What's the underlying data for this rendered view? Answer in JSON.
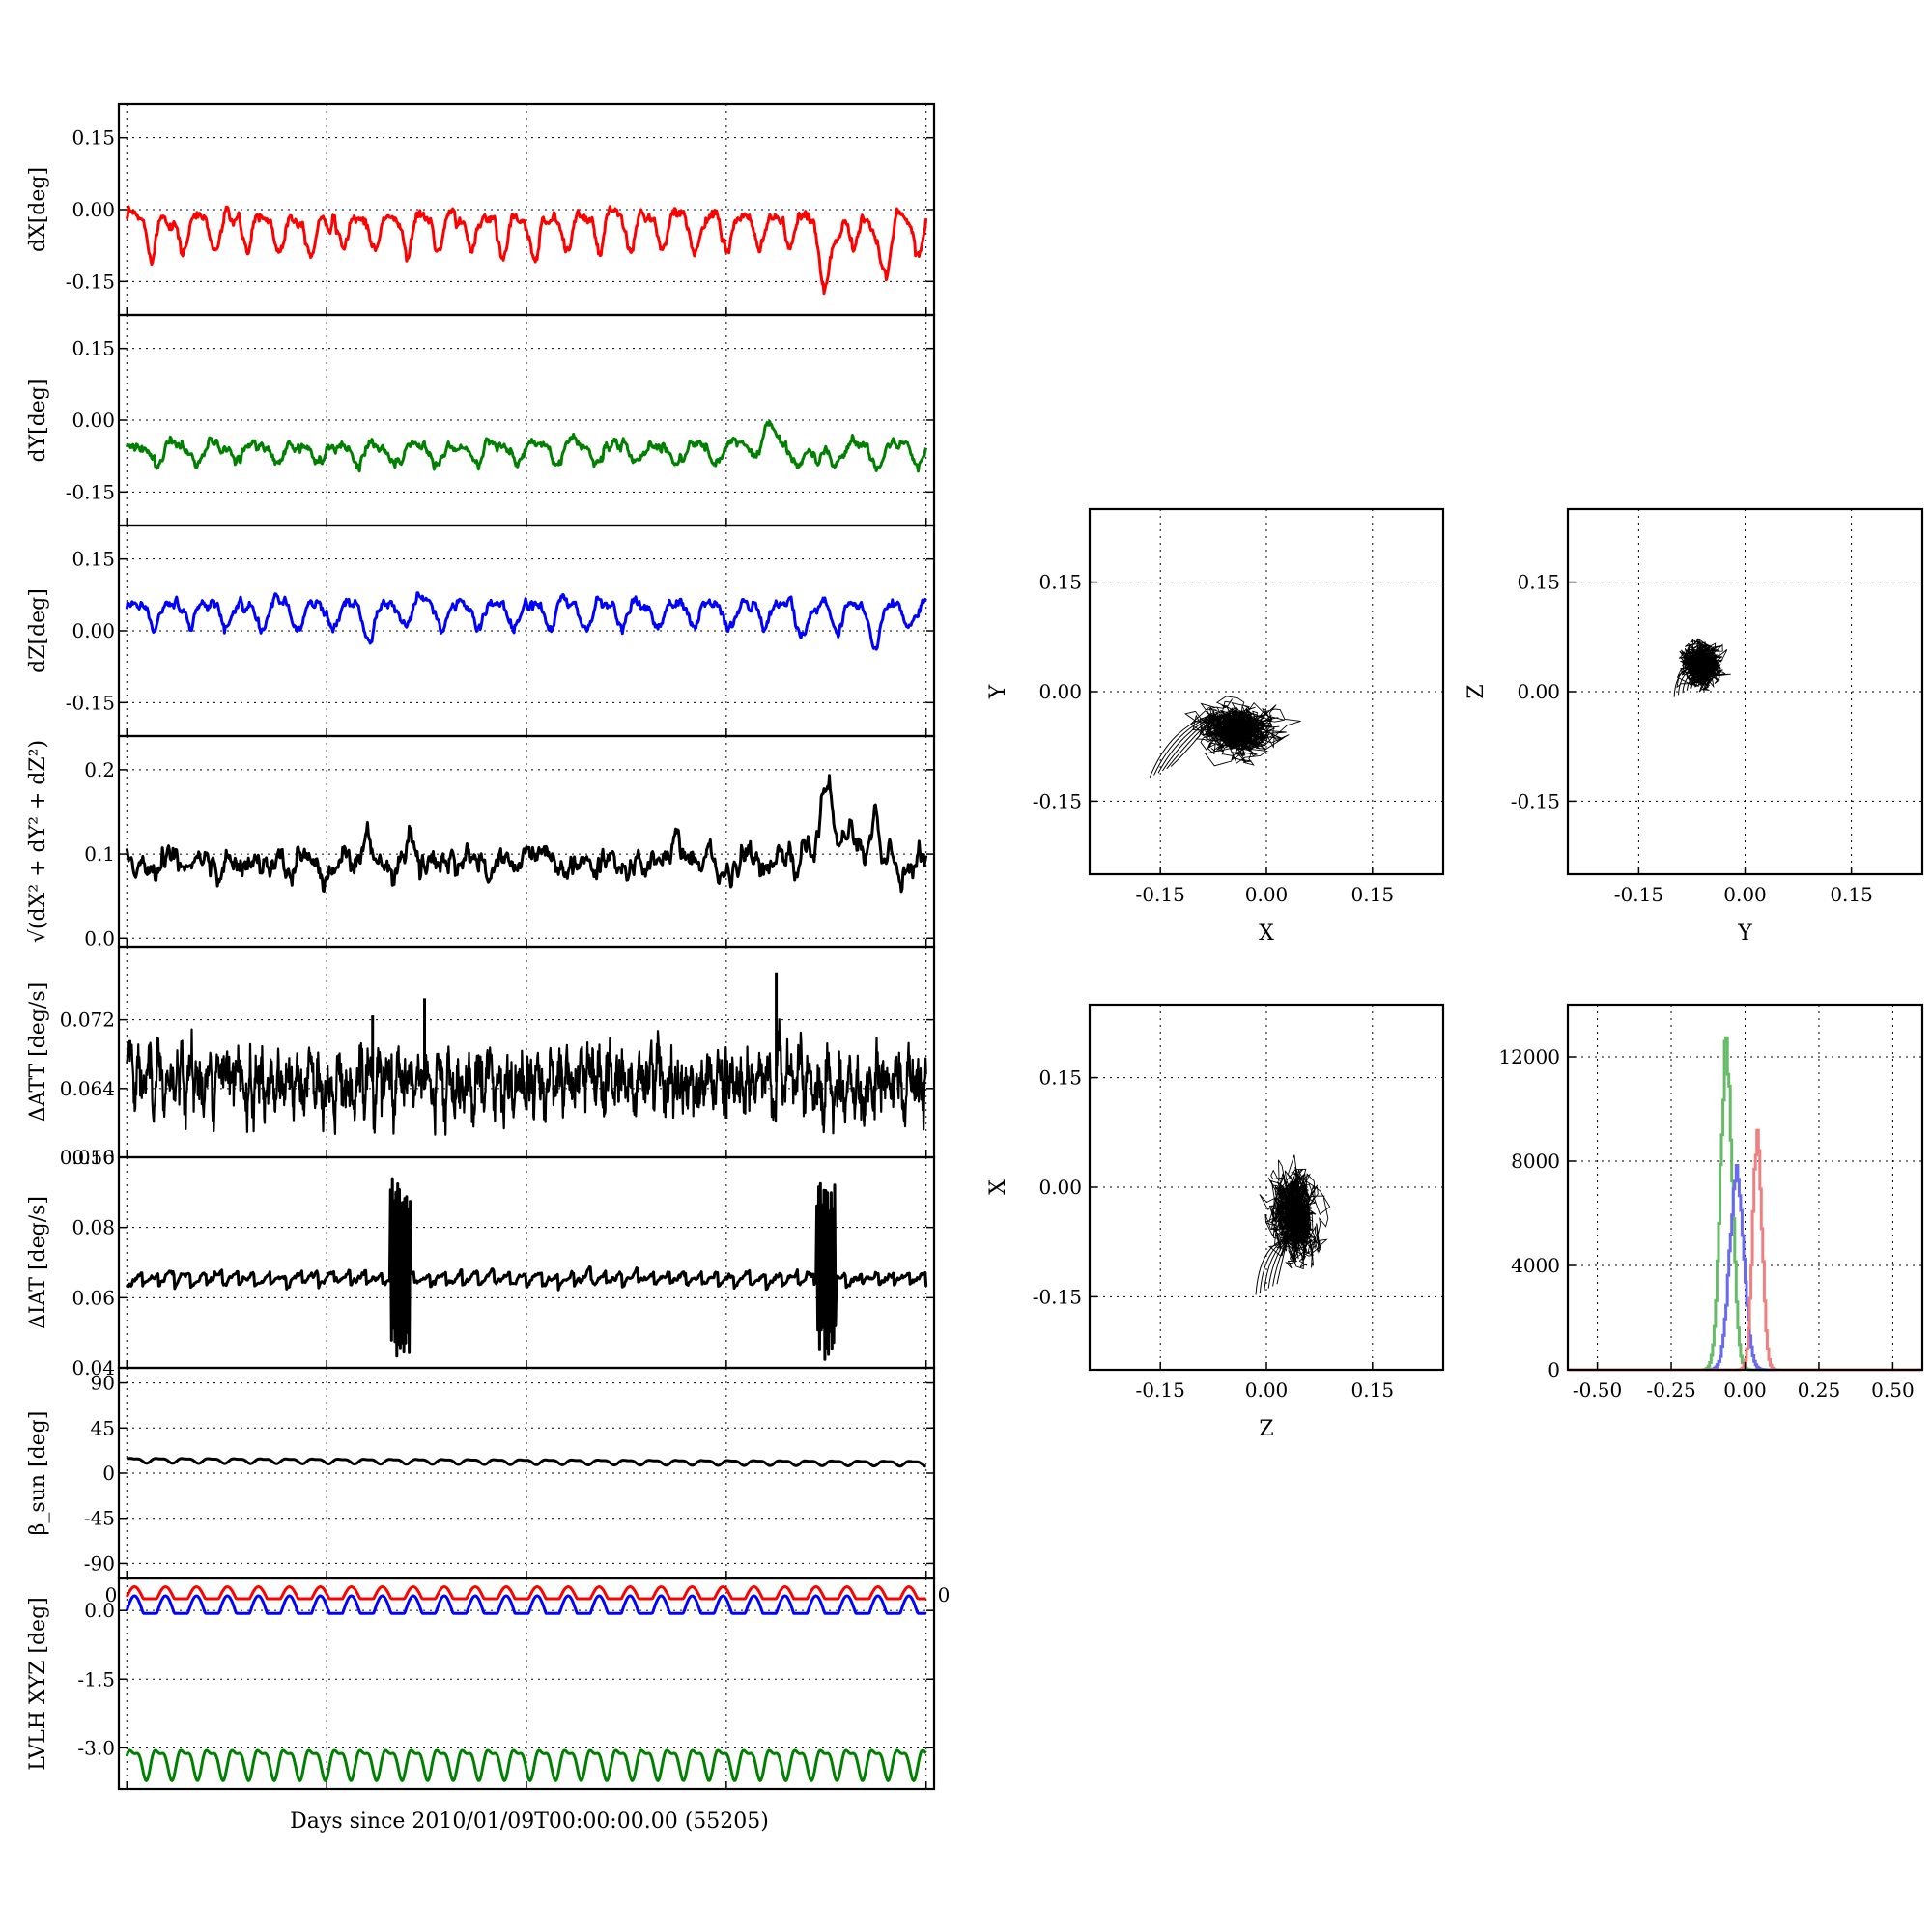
{
  "figure": {
    "xlabel": "Days since 2010/01/09T00:00:00.00 (55205)"
  },
  "colors": {
    "red": "#ff0000",
    "green": "#008000",
    "blue": "#0000ff",
    "black": "#000000",
    "hist_red": "#f08080",
    "hist_green": "#66bb66",
    "hist_blue": "#6a6af0"
  },
  "chart_data": [
    {
      "id": "dx",
      "type": "line",
      "ylabel": "dX[deg]",
      "ylim": [
        -0.22,
        0.22
      ],
      "yticks": [
        0.15,
        0.0,
        -0.15
      ],
      "ytick_labels": [
        "0.15",
        "0.00",
        "-0.15"
      ],
      "xlim": [
        -0.04,
        4.04
      ],
      "xticks": [
        0,
        1,
        2,
        3,
        4
      ],
      "xtick_labels": [
        "",
        "",
        "",
        "",
        ""
      ],
      "grid": true,
      "series": [
        {
          "color": "red",
          "mean": -0.04,
          "amp": 0.035,
          "period": 0.16,
          "noise": 0.006,
          "events": [
            {
              "x": 3.51,
              "dy": -0.08,
              "w": 0.05
            },
            {
              "x": 3.78,
              "dy": -0.05,
              "w": 0.05
            },
            {
              "x": 2.0,
              "dy": -0.03,
              "w": 0.03
            }
          ]
        }
      ]
    },
    {
      "id": "dy",
      "type": "line",
      "ylabel": "dY[deg]",
      "ylim": [
        -0.22,
        0.22
      ],
      "yticks": [
        0.15,
        0.0,
        -0.15
      ],
      "ytick_labels": [
        "0.15",
        "0.00",
        "-0.15"
      ],
      "xlim": [
        -0.04,
        4.04
      ],
      "xticks": [
        0,
        1,
        2,
        3,
        4
      ],
      "xtick_labels": [
        "",
        "",
        "",
        "",
        ""
      ],
      "grid": true,
      "series": [
        {
          "color": "green",
          "mean": -0.065,
          "amp": 0.02,
          "period": 0.2,
          "noise": 0.005,
          "events": [
            {
              "x": 3.2,
              "dy": 0.04,
              "w": 0.06
            },
            {
              "x": 3.45,
              "dy": -0.03,
              "w": 0.05
            }
          ]
        }
      ]
    },
    {
      "id": "dz",
      "type": "line",
      "ylabel": "dZ[deg]",
      "ylim": [
        -0.22,
        0.22
      ],
      "yticks": [
        0.15,
        0.0,
        -0.15
      ],
      "ytick_labels": [
        "0.15",
        "0.00",
        "-0.15"
      ],
      "xlim": [
        -0.04,
        4.04
      ],
      "xticks": [
        0,
        1,
        2,
        3,
        4
      ],
      "xtick_labels": [
        "",
        "",
        "",
        "",
        ""
      ],
      "grid": true,
      "series": [
        {
          "color": "blue",
          "mean": 0.04,
          "amp": 0.025,
          "period": 0.18,
          "noise": 0.005,
          "events": [
            {
              "x": 1.2,
              "dy": -0.035,
              "w": 0.03
            },
            {
              "x": 3.4,
              "dy": -0.03,
              "w": 0.04
            },
            {
              "x": 3.75,
              "dy": -0.04,
              "w": 0.03
            }
          ]
        }
      ]
    },
    {
      "id": "dtot",
      "type": "line",
      "ylabel": "√(dX² + dY² + dZ²)",
      "ylim": [
        -0.01,
        0.24
      ],
      "yticks": [
        0.2,
        0.1,
        0.0
      ],
      "ytick_labels": [
        "0.2",
        "0.1",
        "0.0"
      ],
      "xlim": [
        -0.04,
        4.04
      ],
      "xticks": [
        0,
        1,
        2,
        3,
        4
      ],
      "xtick_labels": [
        "",
        "",
        "",
        "",
        ""
      ],
      "grid": true,
      "series": [
        {
          "color": "black",
          "mean": 0.087,
          "amp": 0.006,
          "period": 0.17,
          "noise": 0.006,
          "trend": 0.004,
          "events": [
            {
              "x": 3.5,
              "dy": 0.085,
              "w": 0.04
            },
            {
              "x": 3.6,
              "dy": 0.03,
              "w": 0.1
            },
            {
              "x": 3.75,
              "dy": 0.05,
              "w": 0.03
            },
            {
              "x": 1.2,
              "dy": 0.03,
              "w": 0.02
            },
            {
              "x": 1.42,
              "dy": 0.03,
              "w": 0.02
            },
            {
              "x": 2.0,
              "dy": 0.03,
              "w": 0.02
            },
            {
              "x": 2.75,
              "dy": 0.03,
              "w": 0.02
            }
          ]
        }
      ]
    },
    {
      "id": "datt",
      "type": "line",
      "ylabel": "ΔATT [deg/s]",
      "ylim": [
        0.056,
        0.0805
      ],
      "yticks": [
        0.072,
        0.064,
        0.056
      ],
      "ytick_labels": [
        "0.072",
        "0.064",
        "0.056"
      ],
      "xlim": [
        -0.04,
        4.04
      ],
      "xticks": [
        0,
        1,
        2,
        3,
        4
      ],
      "xtick_labels": [
        "",
        "",
        "",
        "",
        ""
      ],
      "grid": true,
      "series": [
        {
          "color": "black",
          "mean": 0.0648,
          "amp": 0.0016,
          "period": 0.05,
          "noise": 0.0012,
          "dense": true,
          "spikes": [
            {
              "x": 1.23,
              "y": 0.0725
            },
            {
              "x": 1.49,
              "y": 0.0745
            },
            {
              "x": 3.25,
              "y": 0.0775
            },
            {
              "x": 3.0,
              "y": 0.0605
            },
            {
              "x": 2.0,
              "y": 0.0615
            }
          ]
        }
      ]
    },
    {
      "id": "diat",
      "type": "line",
      "ylabel": "ΔIAT [deg/s]",
      "ylim": [
        0.04,
        0.1
      ],
      "yticks": [
        0.1,
        0.08,
        0.06,
        0.04
      ],
      "ytick_labels": [
        "0.10",
        "0.08",
        "0.06",
        "0.04"
      ],
      "xlim": [
        -0.04,
        4.04
      ],
      "xticks": [
        0,
        1,
        2,
        3,
        4
      ],
      "xtick_labels": [
        "",
        "",
        "",
        "",
        ""
      ],
      "grid": true,
      "series": [
        {
          "color": "black",
          "mean": 0.0655,
          "amp": 0.0018,
          "period": 0.08,
          "noise": 0.0004,
          "sawtooth": true,
          "bursts": [
            {
              "x0": 1.32,
              "x1": 1.42,
              "ymin": 0.0425,
              "ymax": 0.0945
            },
            {
              "x0": 3.45,
              "x1": 3.55,
              "ymin": 0.042,
              "ymax": 0.0935
            }
          ]
        }
      ]
    },
    {
      "id": "bsun",
      "type": "line",
      "ylabel": "β_sun [deg]",
      "ylim": [
        -105,
        105
      ],
      "yticks": [
        90,
        45,
        0,
        -45,
        -90
      ],
      "ytick_labels": [
        "90",
        "45",
        "0",
        "-45",
        "-90"
      ],
      "xlim": [
        -0.04,
        4.04
      ],
      "xticks": [
        0,
        1,
        2,
        3,
        4
      ],
      "xtick_labels": [
        "0",
        "",
        "",
        "",
        "0"
      ],
      "grid": true,
      "series": [
        {
          "color": "black",
          "mean": 13,
          "amp": 2.2,
          "period": 0.13,
          "noise": 0,
          "trend": -3
        }
      ]
    },
    {
      "id": "lvlh",
      "type": "line",
      "ylabel": "LVLH XYZ [deg]",
      "ylim": [
        -3.9,
        0.7
      ],
      "yticks": [
        0.0,
        -1.5,
        -3.0
      ],
      "ytick_labels": [
        "0.0",
        "-1.5",
        "-3.0"
      ],
      "xlim": [
        -0.04,
        4.04
      ],
      "xticks": [
        0,
        1,
        2,
        3,
        4
      ],
      "xtick_labels": [
        "",
        "",
        "",
        "",
        ""
      ],
      "grid": true,
      "series": [
        {
          "color": "red",
          "mean": 0.3,
          "amp": 0.22,
          "period": 0.155,
          "noise": 0,
          "shape": "round"
        },
        {
          "color": "blue",
          "mean": 0.0,
          "amp": 0.32,
          "period": 0.155,
          "noise": 0,
          "shape": "round"
        },
        {
          "color": "green",
          "mean": -3.3,
          "amp": 0.3,
          "period": 0.128,
          "noise": 0
        }
      ]
    },
    {
      "id": "xy",
      "type": "scatter",
      "xlabel": "X",
      "ylabel": "Y",
      "xlim": [
        -0.25,
        0.25
      ],
      "ylim": [
        -0.25,
        0.25
      ],
      "ticks": [
        -0.15,
        0.0,
        0.15
      ],
      "tick_labels": [
        "-0.15",
        "0.00",
        "0.15"
      ],
      "grid": true,
      "cloud": {
        "cx": -0.045,
        "cy": -0.055,
        "sx": 0.022,
        "sy": 0.015,
        "tail": {
          "x0": -0.15,
          "y0": -0.11,
          "x1": -0.07,
          "y1": -0.03
        }
      }
    },
    {
      "id": "zy",
      "type": "scatter",
      "xlabel": "Y",
      "ylabel": "Z",
      "xlim": [
        -0.25,
        0.25
      ],
      "ylim": [
        -0.25,
        0.25
      ],
      "ticks": [
        -0.15,
        0.0,
        0.15
      ],
      "tick_labels": [
        "-0.15",
        "0.00",
        "0.15"
      ],
      "grid": true,
      "cloud": {
        "cx": -0.06,
        "cy": 0.04,
        "sx": 0.012,
        "sy": 0.012,
        "tail": {
          "x0": -0.085,
          "y0": 0.0,
          "x1": -0.06,
          "y1": 0.03
        }
      }
    },
    {
      "id": "zx",
      "type": "scatter",
      "xlabel": "Z",
      "ylabel": "X",
      "xlim": [
        -0.25,
        0.25
      ],
      "ylim": [
        -0.25,
        0.25
      ],
      "ticks": [
        -0.15,
        0.0,
        0.15
      ],
      "tick_labels": [
        "-0.15",
        "0.00",
        "0.15"
      ],
      "grid": true,
      "cloud": {
        "cx": 0.04,
        "cy": -0.04,
        "sx": 0.013,
        "sy": 0.025,
        "tail": {
          "x0": 0.0,
          "y0": -0.14,
          "x1": 0.03,
          "y1": -0.07
        }
      }
    },
    {
      "id": "hist",
      "type": "area",
      "xlim": [
        -0.6,
        0.6
      ],
      "ylim": [
        0,
        14000
      ],
      "xticks": [
        -0.5,
        -0.25,
        0.0,
        0.25,
        0.5
      ],
      "xtick_labels": [
        "-0.50",
        "-0.25",
        "0.00",
        "0.25",
        "0.50"
      ],
      "yticks": [
        12000,
        8000,
        4000,
        0
      ],
      "ytick_labels": [
        "12000",
        "8000",
        "4000",
        "0"
      ],
      "grid": true,
      "series": [
        {
          "color": "hist_green",
          "center": -0.065,
          "sigma": 0.02,
          "peak": 12300
        },
        {
          "color": "hist_blue",
          "center": -0.03,
          "sigma": 0.024,
          "peak": 7500
        },
        {
          "color": "hist_red",
          "center": 0.04,
          "sigma": 0.016,
          "peak": 8900
        }
      ]
    }
  ]
}
